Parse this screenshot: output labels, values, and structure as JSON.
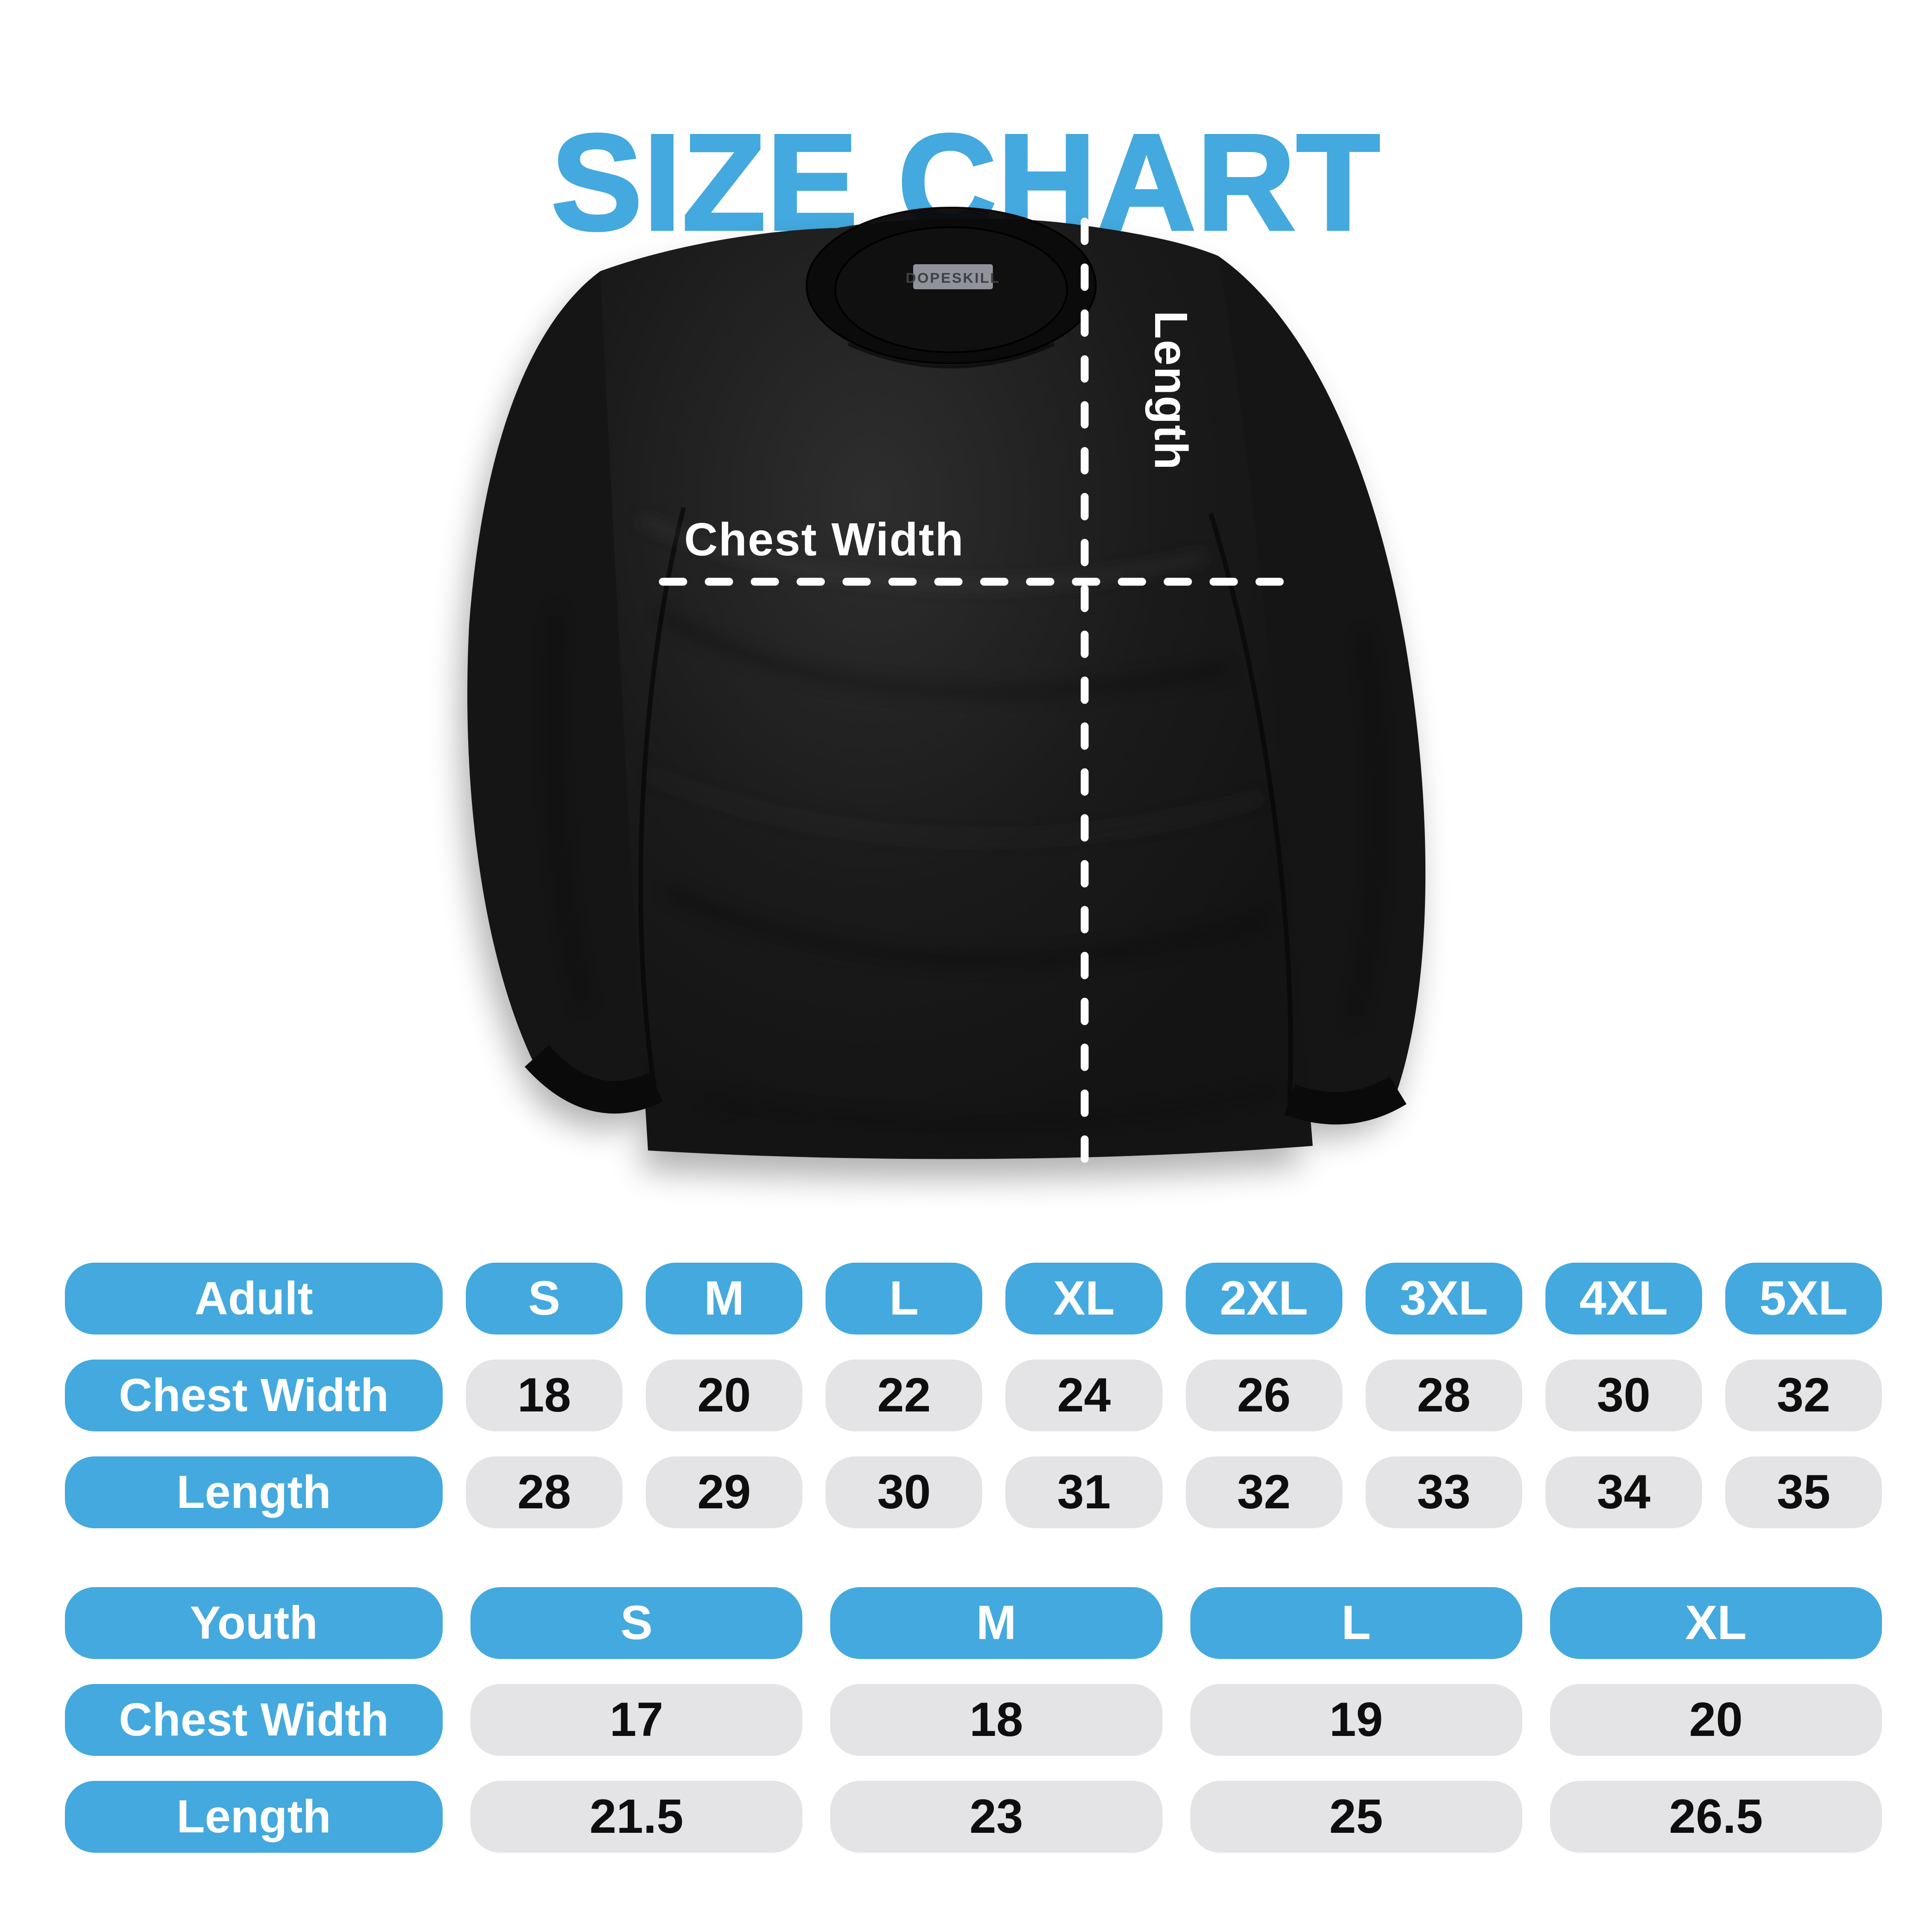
{
  "title": {
    "text": "SIZE CHART"
  },
  "colors": {
    "accent_blue": "#43A9DE",
    "cell_gray": "#E4E4E6",
    "shirt_black": "#181818",
    "number_black": "#0e0e0e",
    "measure_line_white": "#ffffff"
  },
  "shirt": {
    "brand_label": "DOPESKILL",
    "length_label": "Length",
    "chest_width_label": "Chest Width"
  },
  "adult_table": {
    "header": {
      "label": "Adult",
      "sizes": [
        "S",
        "M",
        "L",
        "XL",
        "2XL",
        "3XL",
        "4XL",
        "5XL"
      ]
    },
    "rows": [
      {
        "label": "Chest Width",
        "values": [
          "18",
          "20",
          "22",
          "24",
          "26",
          "28",
          "30",
          "32"
        ]
      },
      {
        "label": "Length",
        "values": [
          "28",
          "29",
          "30",
          "31",
          "32",
          "33",
          "34",
          "35"
        ]
      }
    ]
  },
  "youth_table": {
    "header": {
      "label": "Youth",
      "sizes": [
        "S",
        "M",
        "L",
        "XL"
      ]
    },
    "rows": [
      {
        "label": "Chest Width",
        "values": [
          "17",
          "18",
          "19",
          "20"
        ]
      },
      {
        "label": "Length",
        "values": [
          "21.5",
          "23",
          "25",
          "26.5"
        ]
      }
    ]
  }
}
